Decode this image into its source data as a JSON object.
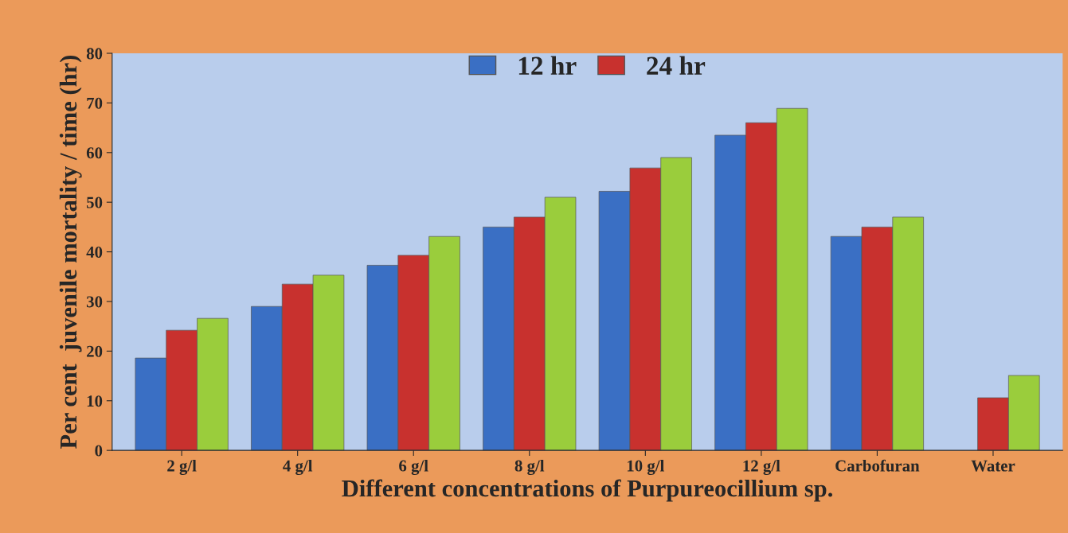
{
  "chart_data": {
    "type": "bar",
    "xlabel": "Different concentrations of Purpureocillium sp.",
    "ylabel": "Per cent  juvenile mortality / time (hr)",
    "categories": [
      "2 g/l",
      "4 g/l",
      "6 g/l",
      "8 g/l",
      "10 g/l",
      "12 g/l",
      "Carbofuran",
      "Water"
    ],
    "series": [
      {
        "name": "12 hr",
        "color": "#3a6fc4",
        "values": [
          18.6,
          29.0,
          37.3,
          45.0,
          52.2,
          63.5,
          43.1,
          null
        ]
      },
      {
        "name": "24 hr",
        "color": "#c8312e",
        "values": [
          24.2,
          33.5,
          39.3,
          47.0,
          56.9,
          66.0,
          45.0,
          10.6
        ]
      },
      {
        "color": "#9acd3c",
        "values": [
          26.6,
          35.3,
          43.1,
          51.0,
          59.0,
          68.9,
          47.0,
          15.1
        ]
      }
    ],
    "ylim": [
      0,
      80
    ],
    "yticks": [
      0,
      10,
      20,
      30,
      40,
      50,
      60,
      70,
      80
    ],
    "grid": false,
    "legend": "top"
  }
}
